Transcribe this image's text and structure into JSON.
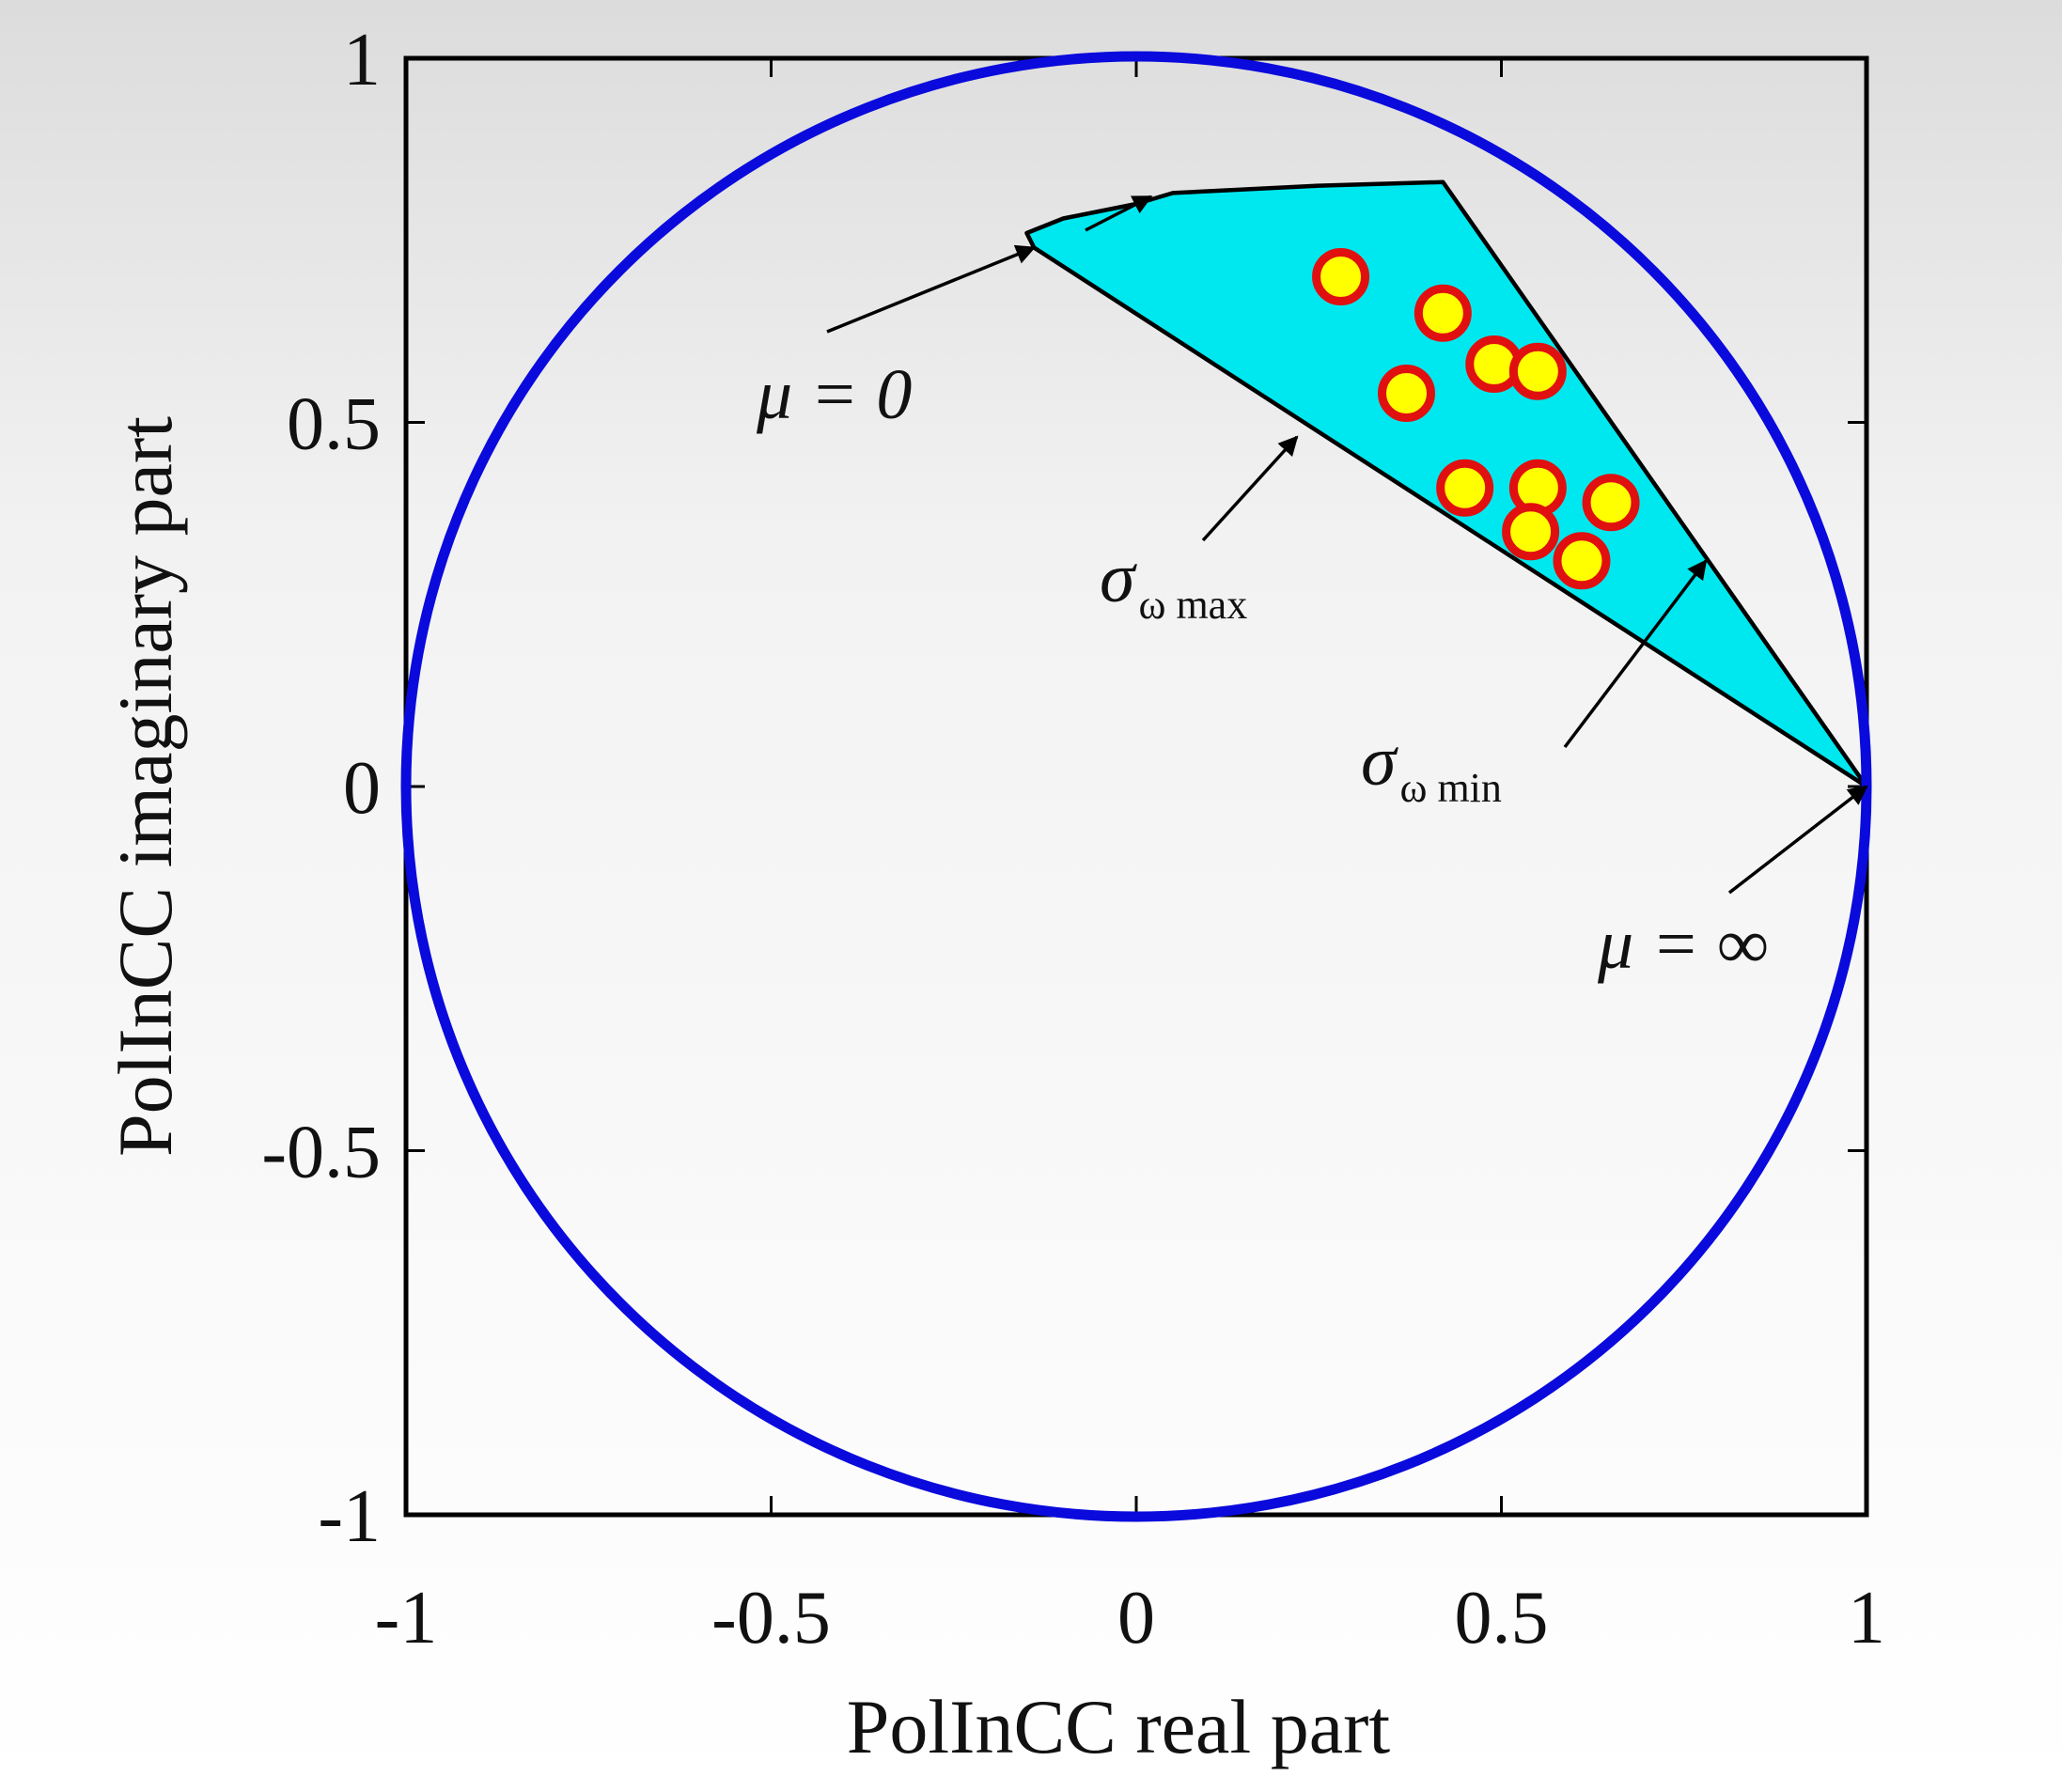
{
  "chart_data": {
    "type": "scatter",
    "title": "",
    "xlabel": "PolInCC real part",
    "ylabel": "PolInCC imaginary part",
    "xlim": [
      -1,
      1
    ],
    "ylim": [
      -1,
      1
    ],
    "xticks": [
      -1,
      -0.5,
      0,
      0.5,
      1
    ],
    "yticks": [
      -1,
      -0.5,
      0,
      0.5,
      1
    ],
    "xtick_labels": [
      "-1",
      "-0.5",
      "0",
      "0.5",
      "1"
    ],
    "ytick_labels": [
      "-1",
      "-0.5",
      "0",
      "0.5",
      "1"
    ],
    "grid": false,
    "unit_circle": {
      "center": [
        0,
        0
      ],
      "radius": 1,
      "color": "#0a0adc"
    },
    "region": {
      "fill": "#00e8ef",
      "outline": "#000000",
      "upper_curve": [
        [
          -0.14,
          0.74
        ],
        [
          -0.15,
          0.76
        ],
        [
          -0.1,
          0.78
        ],
        [
          0.0,
          0.8
        ],
        [
          0.05,
          0.815
        ],
        [
          0.25,
          0.825
        ],
        [
          0.42,
          0.83
        ]
      ],
      "vertex_top": [
        0.42,
        0.83
      ],
      "vertex_right": [
        1.0,
        0.0
      ],
      "lower_edge_start": [
        -0.14,
        0.74
      ]
    },
    "points": {
      "face_color": "#ffff00",
      "edge_color": "#e01010",
      "x": [
        0.28,
        0.42,
        0.49,
        0.55,
        0.37,
        0.45,
        0.55,
        0.65,
        0.54,
        0.61
      ],
      "y": [
        0.7,
        0.65,
        0.58,
        0.57,
        0.54,
        0.41,
        0.41,
        0.39,
        0.35,
        0.31
      ]
    },
    "annotations": [
      {
        "label": "μ = 0",
        "target": [
          -0.14,
          0.74
        ]
      },
      {
        "label": "σ",
        "subscript": "ω max",
        "target": [
          0.22,
          0.48
        ]
      },
      {
        "label": "σ",
        "subscript": "ω min",
        "target": [
          0.78,
          0.31
        ]
      },
      {
        "label": "μ = ∞",
        "target": [
          1.0,
          0.0
        ]
      },
      {
        "label": "",
        "target": [
          0.02,
          0.81
        ]
      }
    ]
  }
}
